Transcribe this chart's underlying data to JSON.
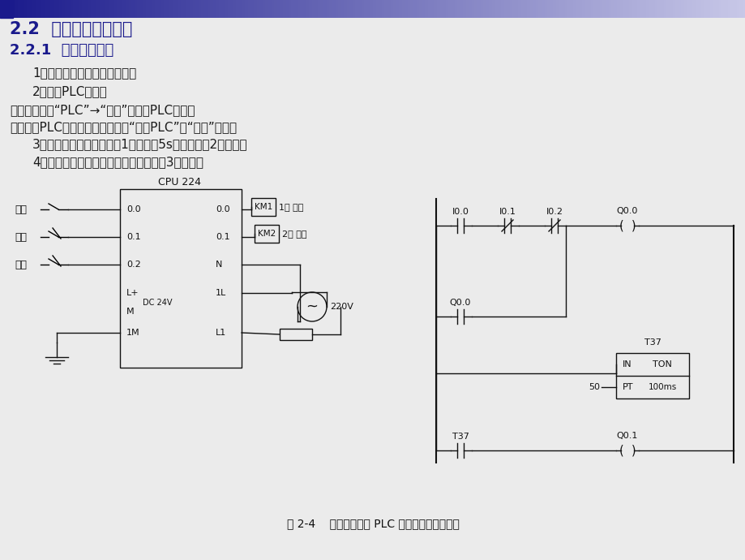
{
  "title1": "2.2  程序的编写与传送",
  "title2": "2.2.1  生成用户程序",
  "item1": "1．创建项目或打开已有的项目",
  "item2": "2．设置PLC的型号",
  "item3": "执行菜单命令“PLC”→“类型”，设置PLC型号。",
  "item4": "建立起与PLC的通信连接后，单击“读取PLC”和“确认”按鈕。",
  "item5": "3．控制要求：用按鈕起动1号电机，5s后自动起动2号电机。",
  "item6": "4．编写用户程序的演示，放置定时器的3种方法。",
  "caption": "图 2-4    电动机控制的 PLC 外部接线图与梯形图",
  "label_qidong": "起动",
  "label_tingzhi": "停止",
  "label_guozai": "过载",
  "label_1motor": "1号 电机",
  "label_2motor": "2号 电机",
  "bg_color": "#ebebeb",
  "header_color_left": "#1a1a8c",
  "header_color_right": "#c8c8e8",
  "text_color": "#1a1a1a",
  "title1_color": "#1a1a8c",
  "title2_color": "#1a1a8c"
}
